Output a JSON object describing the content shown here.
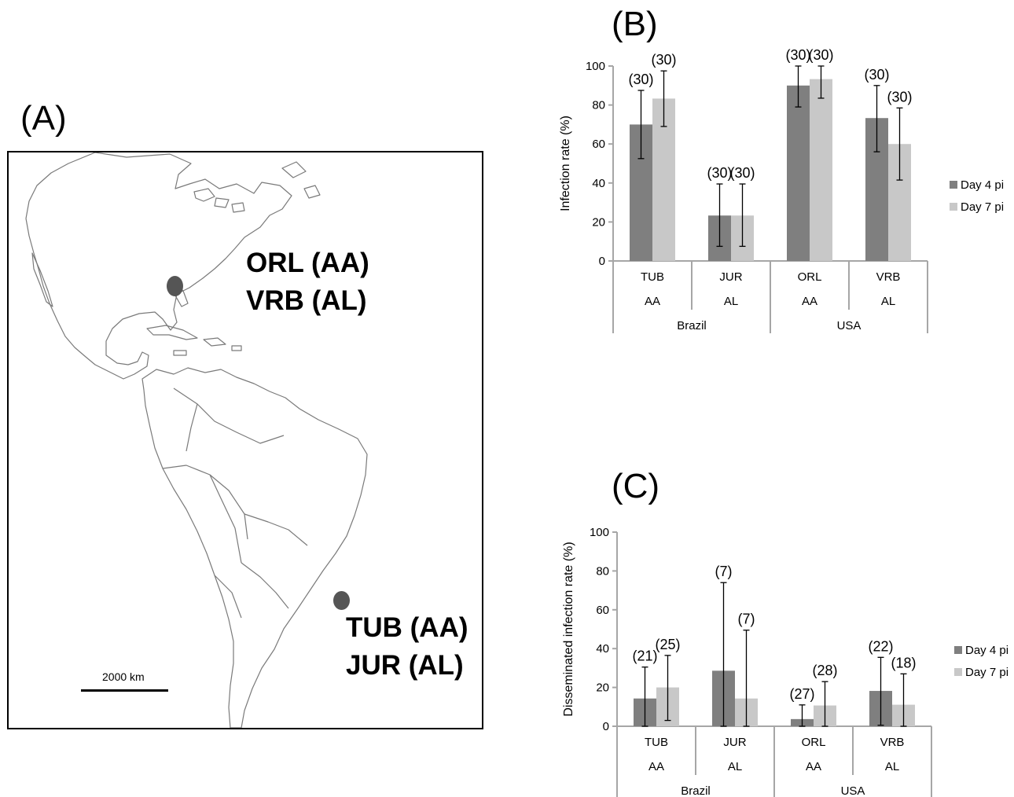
{
  "panels": {
    "a": "(A)",
    "b": "(B)",
    "c": "(C)"
  },
  "map": {
    "sites": [
      {
        "line1": "ORL (AA)",
        "line2": "VRB (AL)"
      },
      {
        "line1": "TUB (AA)",
        "line2": "JUR (AL)"
      }
    ],
    "scale_label": "2000 km"
  },
  "colors": {
    "day4": "#7f7f7f",
    "day7": "#c8c8c8",
    "axis": "#a6a6a6",
    "marker": "#555555"
  },
  "chart_data": [
    {
      "type": "bar",
      "panel": "(B)",
      "ylabel": "Infection rate (%)",
      "ylim": [
        0,
        100
      ],
      "yticks": [
        0,
        20,
        40,
        60,
        80,
        100
      ],
      "categories": [
        "TUB",
        "JUR",
        "ORL",
        "VRB"
      ],
      "subgroups": [
        "AA",
        "AL",
        "AA",
        "AL"
      ],
      "groups": [
        "Brazil",
        "USA"
      ],
      "legend_position": "right",
      "series": [
        {
          "name": "Day 4 pi",
          "values": [
            70,
            23.3,
            90,
            73.3
          ],
          "err_low": [
            52.5,
            7.5,
            79,
            56
          ],
          "err_high": [
            87.5,
            39.5,
            100,
            90
          ],
          "n": [
            "(30)",
            "(30)",
            "(30)",
            "(30)"
          ]
        },
        {
          "name": "Day 7 pi",
          "values": [
            83.3,
            23.3,
            93.3,
            60
          ],
          "err_low": [
            69,
            7.5,
            83.5,
            41.5
          ],
          "err_high": [
            97.5,
            39.5,
            100,
            78.5
          ],
          "n": [
            "(30)",
            "(30)",
            "(30)",
            "(30)"
          ]
        }
      ]
    },
    {
      "type": "bar",
      "panel": "(C)",
      "ylabel": "Disseminated infection rate (%)",
      "ylim": [
        0,
        100
      ],
      "yticks": [
        0,
        20,
        40,
        60,
        80,
        100
      ],
      "categories": [
        "TUB",
        "JUR",
        "ORL",
        "VRB"
      ],
      "subgroups": [
        "AA",
        "AL",
        "AA",
        "AL"
      ],
      "groups": [
        "Brazil",
        "USA"
      ],
      "legend_position": "right",
      "series": [
        {
          "name": "Day 4 pi",
          "values": [
            14.3,
            28.6,
            3.7,
            18.2
          ],
          "err_low": [
            0,
            0,
            0,
            0.5
          ],
          "err_high": [
            30.5,
            74,
            11,
            35.5
          ],
          "n": [
            "(21)",
            "(7)",
            "(27)",
            "(22)"
          ]
        },
        {
          "name": "Day 7 pi",
          "values": [
            20,
            14.3,
            10.7,
            11.1
          ],
          "err_low": [
            3,
            0,
            0,
            0
          ],
          "err_high": [
            36.5,
            49.5,
            23,
            27
          ],
          "n": [
            "(25)",
            "(7)",
            "(28)",
            "(18)"
          ]
        }
      ]
    }
  ]
}
